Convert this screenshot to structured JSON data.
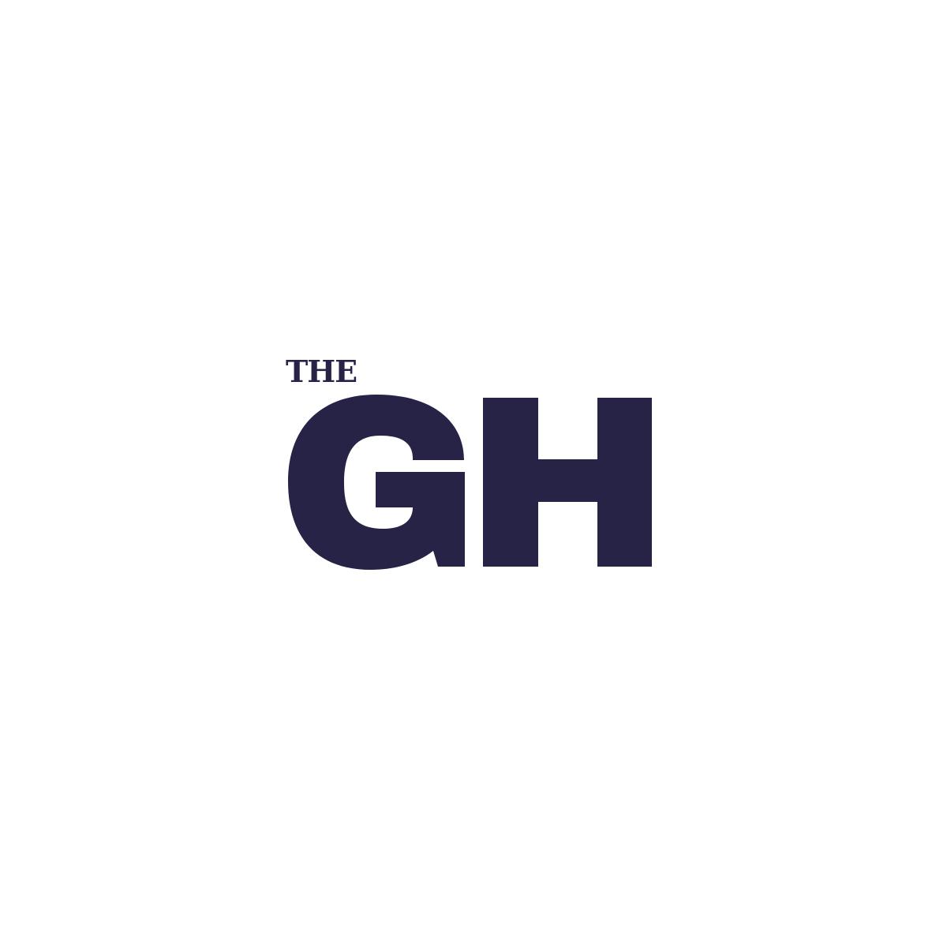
{
  "logo": {
    "prefix": "THE",
    "initials": "GH",
    "color": "#262346",
    "background": "#ffffff"
  }
}
